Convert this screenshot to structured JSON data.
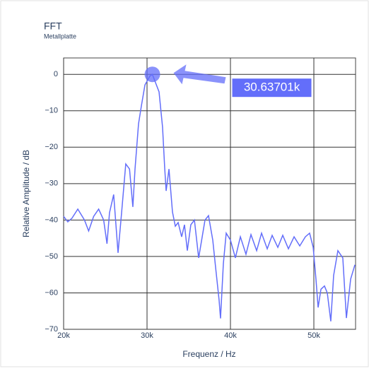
{
  "chart_data": {
    "type": "line",
    "title": "FFT",
    "subtitle": "Metallplatte",
    "x_label": "Frequenz / Hz",
    "y_label": "Relative Amplitude / dB",
    "color": "#636efa",
    "x": [
      20000,
      20500,
      21000,
      21700,
      22500,
      23000,
      23600,
      24200,
      24800,
      25200,
      25500,
      26000,
      26525,
      26950,
      27450,
      27900,
      28300,
      28560,
      28980,
      29320,
      29750,
      30340,
      30637.01,
      31440,
      31860,
      32120,
      32290,
      32630,
      33050,
      33390,
      33730,
      34150,
      34490,
      34830,
      35250,
      35680,
      36190,
      36950,
      37370,
      37880,
      38220,
      38640,
      38810,
      39150,
      39490,
      40000,
      40590,
      41190,
      41860,
      42460,
      43140,
      43730,
      44410,
      45000,
      45680,
      46270,
      46950,
      47630,
      48310,
      48980,
      49490,
      49920,
      50250,
      50510,
      50850,
      51270,
      51610,
      52030,
      52370,
      52880,
      53470,
      53900,
      54410,
      54920
    ],
    "values": [
      -39,
      -40.5,
      -39.5,
      -37,
      -40,
      -43,
      -39,
      -37,
      -40,
      -46.5,
      -38,
      -33,
      -49,
      -38,
      -24.6,
      -26,
      -36.4,
      -26,
      -13.6,
      -8.7,
      -2.9,
      -0.5,
      0,
      -4.8,
      -14.5,
      -25.8,
      -32,
      -26,
      -37.8,
      -41.7,
      -40.7,
      -44.6,
      -41.3,
      -48.4,
      -41.3,
      -40,
      -50.4,
      -40,
      -38.8,
      -45.5,
      -53,
      -62,
      -67,
      -52,
      -43.6,
      -45.5,
      -50.4,
      -44.6,
      -49.4,
      -44,
      -48.4,
      -43.6,
      -47.9,
      -44.2,
      -47.5,
      -44.2,
      -47.9,
      -44.6,
      -47.1,
      -44.6,
      -43.6,
      -47.5,
      -56.2,
      -64,
      -59,
      -58.1,
      -60,
      -67.8,
      -55.2,
      -48.4,
      -50.4,
      -66.9,
      -56.2,
      -52.3
    ],
    "xlim": [
      20000,
      55000
    ],
    "ylim": [
      -70,
      4.5
    ],
    "xticks": [
      {
        "value": 20000,
        "label": "20k"
      },
      {
        "value": 30000,
        "label": "30k"
      },
      {
        "value": 40000,
        "label": "40k"
      },
      {
        "value": 50000,
        "label": "50k"
      }
    ],
    "yticks": [
      0,
      {
        "value": -10,
        "label": "−10"
      },
      {
        "value": -20,
        "label": "−20"
      },
      {
        "value": -30,
        "label": "−30"
      },
      {
        "value": -40,
        "label": "−40"
      },
      {
        "value": -50,
        "label": "−50"
      },
      {
        "value": -60,
        "label": "−60"
      },
      {
        "value": -70,
        "label": "−70"
      }
    ],
    "grid": true,
    "annotations": [
      {
        "x": 30637.01,
        "y": 0,
        "text": "30.63701k"
      }
    ]
  }
}
